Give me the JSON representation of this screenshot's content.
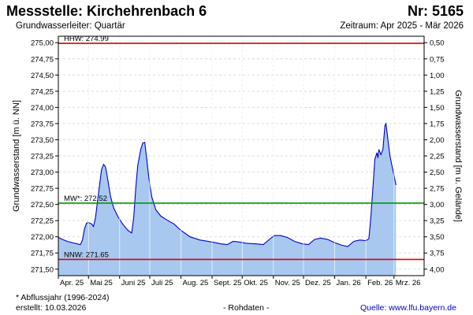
{
  "header": {
    "title": "Messstelle: Kirchehrenbach 6",
    "number": "Nr: 5165",
    "aquifer": "Grundwasserleiter: Quartär",
    "period": "Zeitraum: Apr 2025 - Mär 2026"
  },
  "footer": {
    "note": "* Abflussjahr (1996-2024)",
    "created": "erstellt:  10.03.2026",
    "raw": "- Rohdaten -",
    "source": "Quelle: www.lfu.bayern.de"
  },
  "chart_data": {
    "type": "area",
    "ylabel_left": "Grundwasserstand [m ü. NN]",
    "ylabel_right": "Grundwasserstand [m u. Gelände]",
    "ylim": [
      271.4,
      275.1
    ],
    "yticks_left": [
      "275,00",
      "274,75",
      "274,50",
      "274,25",
      "274,00",
      "273,75",
      "273,50",
      "273,25",
      "273,00",
      "272,75",
      "272,50",
      "272,25",
      "272,00",
      "271,75",
      "271,50"
    ],
    "yticks_left_values": [
      275.0,
      274.75,
      274.5,
      274.25,
      274.0,
      273.75,
      273.5,
      273.25,
      273.0,
      272.75,
      272.5,
      272.25,
      272.0,
      271.75,
      271.5
    ],
    "yticks_right": [
      "0,50",
      "0,75",
      "1,00",
      "1,25",
      "1,50",
      "1,75",
      "2,00",
      "2,25",
      "2,50",
      "2,75",
      "3,00",
      "3,25",
      "3,50",
      "3,75",
      "4,00"
    ],
    "xlim": [
      "2025-04-01",
      "2026-03-31"
    ],
    "xticks": [
      {
        "label": "Apr. 25",
        "date": "2025-04-01"
      },
      {
        "label": "Mai 25",
        "date": "2025-05-01"
      },
      {
        "label": "Juni 25",
        "date": "2025-06-01"
      },
      {
        "label": "Juli 25",
        "date": "2025-07-01"
      },
      {
        "label": "Aug. 25",
        "date": "2025-08-01"
      },
      {
        "label": "Sept. 25",
        "date": "2025-09-01"
      },
      {
        "label": "Okt. 25",
        "date": "2025-10-01"
      },
      {
        "label": "Nov. 25",
        "date": "2025-11-01"
      },
      {
        "label": "Dez. 25",
        "date": "2025-12-01"
      },
      {
        "label": "Jan. 26",
        "date": "2026-01-01"
      },
      {
        "label": "Feb. 26",
        "date": "2026-02-01"
      },
      {
        "label": "Mrz. 26",
        "date": "2026-03-01"
      }
    ],
    "reference_lines": [
      {
        "label": "HHW: 274.99",
        "value": 274.99,
        "color": "#e00000"
      },
      {
        "label": "MW*: 272.52",
        "value": 272.52,
        "color": "#009900"
      },
      {
        "label": "NNW: 271.65",
        "value": 271.65,
        "color": "#e00000"
      }
    ],
    "grid": true,
    "series": [
      {
        "color": "#0000cc",
        "fill": "#a8c8f0",
        "points": [
          [
            "2025-04-01",
            271.99
          ],
          [
            "2025-04-05",
            271.96
          ],
          [
            "2025-04-10",
            271.93
          ],
          [
            "2025-04-15",
            271.91
          ],
          [
            "2025-04-20",
            271.89
          ],
          [
            "2025-04-23",
            271.88
          ],
          [
            "2025-04-25",
            271.95
          ],
          [
            "2025-04-27",
            272.12
          ],
          [
            "2025-04-29",
            272.21
          ],
          [
            "2025-05-01",
            272.22
          ],
          [
            "2025-05-04",
            272.2
          ],
          [
            "2025-05-06",
            272.16
          ],
          [
            "2025-05-08",
            272.3
          ],
          [
            "2025-05-10",
            272.55
          ],
          [
            "2025-05-12",
            272.8
          ],
          [
            "2025-05-14",
            273.04
          ],
          [
            "2025-05-16",
            273.12
          ],
          [
            "2025-05-18",
            273.08
          ],
          [
            "2025-05-20",
            272.9
          ],
          [
            "2025-05-23",
            272.62
          ],
          [
            "2025-05-26",
            272.45
          ],
          [
            "2025-05-30",
            272.32
          ],
          [
            "2025-06-03",
            272.22
          ],
          [
            "2025-06-07",
            272.14
          ],
          [
            "2025-06-10",
            272.09
          ],
          [
            "2025-06-13",
            272.06
          ],
          [
            "2025-06-15",
            272.3
          ],
          [
            "2025-06-17",
            272.75
          ],
          [
            "2025-06-19",
            273.1
          ],
          [
            "2025-06-22",
            273.35
          ],
          [
            "2025-06-24",
            273.45
          ],
          [
            "2025-06-26",
            273.46
          ],
          [
            "2025-06-28",
            273.2
          ],
          [
            "2025-06-30",
            272.92
          ],
          [
            "2025-07-03",
            272.62
          ],
          [
            "2025-07-07",
            272.42
          ],
          [
            "2025-07-12",
            272.32
          ],
          [
            "2025-07-18",
            272.26
          ],
          [
            "2025-07-25",
            272.2
          ],
          [
            "2025-08-01",
            272.1
          ],
          [
            "2025-08-10",
            272.0
          ],
          [
            "2025-08-20",
            271.95
          ],
          [
            "2025-09-01",
            271.92
          ],
          [
            "2025-09-10",
            271.89
          ],
          [
            "2025-09-16",
            271.88
          ],
          [
            "2025-09-22",
            271.93
          ],
          [
            "2025-09-28",
            271.92
          ],
          [
            "2025-10-05",
            271.9
          ],
          [
            "2025-10-15",
            271.89
          ],
          [
            "2025-10-22",
            271.88
          ],
          [
            "2025-10-28",
            271.96
          ],
          [
            "2025-11-02",
            272.02
          ],
          [
            "2025-11-08",
            272.02
          ],
          [
            "2025-11-15",
            271.99
          ],
          [
            "2025-11-22",
            271.93
          ],
          [
            "2025-11-30",
            271.89
          ],
          [
            "2025-12-06",
            271.88
          ],
          [
            "2025-12-12",
            271.96
          ],
          [
            "2025-12-18",
            271.98
          ],
          [
            "2025-12-25",
            271.96
          ],
          [
            "2026-01-01",
            271.91
          ],
          [
            "2026-01-08",
            271.87
          ],
          [
            "2026-01-14",
            271.85
          ],
          [
            "2026-01-20",
            271.93
          ],
          [
            "2026-01-26",
            271.95
          ],
          [
            "2026-02-01",
            271.94
          ],
          [
            "2026-02-04",
            271.97
          ],
          [
            "2026-02-06",
            272.3
          ],
          [
            "2026-02-08",
            272.75
          ],
          [
            "2026-02-10",
            273.2
          ],
          [
            "2026-02-12",
            273.3
          ],
          [
            "2026-02-13",
            273.22
          ],
          [
            "2026-02-14",
            273.35
          ],
          [
            "2026-02-16",
            273.27
          ],
          [
            "2026-02-18",
            273.35
          ],
          [
            "2026-02-20",
            273.72
          ],
          [
            "2026-02-21",
            273.75
          ],
          [
            "2026-02-23",
            273.5
          ],
          [
            "2026-02-25",
            273.25
          ],
          [
            "2026-02-27",
            273.1
          ],
          [
            "2026-03-01",
            272.95
          ],
          [
            "2026-03-03",
            272.8
          ]
        ]
      }
    ]
  }
}
